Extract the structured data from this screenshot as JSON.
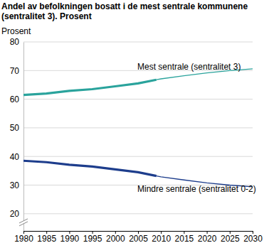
{
  "chart_data": {
    "type": "line",
    "title": "Andel av befolkningen bosatt i de mest sentrale kommunene (sentralitet 3). Prosent",
    "y_label": "Prosent",
    "x": [
      1980,
      1985,
      1990,
      1995,
      2000,
      2005,
      2009,
      2010,
      2015,
      2020,
      2025,
      2030
    ],
    "series": [
      {
        "name": "Mest sentrale (sentralitet 3)",
        "color": "#2aa39c",
        "line_style": "thick",
        "values": [
          61.5,
          62.0,
          62.9,
          63.5,
          64.5,
          65.5,
          66.8,
          null,
          null,
          null,
          null,
          null
        ]
      },
      {
        "color": "#2aa39c",
        "line_style": "thin",
        "values": [
          null,
          null,
          null,
          null,
          null,
          null,
          66.8,
          67.1,
          68.2,
          69.2,
          70.0,
          70.6
        ]
      },
      {
        "name": "Mindre sentrale (sentralitet 0-2)",
        "color": "#1d3d8c",
        "line_style": "thick",
        "values": [
          38.5,
          38.0,
          37.1,
          36.5,
          35.5,
          34.5,
          33.2,
          null,
          null,
          null,
          null,
          null
        ]
      },
      {
        "color": "#1d3d8c",
        "line_style": "thin",
        "values": [
          null,
          null,
          null,
          null,
          null,
          null,
          33.2,
          32.9,
          31.8,
          30.8,
          30.0,
          29.4
        ]
      }
    ],
    "xlim": [
      1980,
      2030
    ],
    "xticks": [
      1980,
      1985,
      1990,
      1995,
      2000,
      2005,
      2010,
      2015,
      2020,
      2025,
      2030
    ],
    "ylim": [
      14,
      80
    ],
    "yticks": [
      20,
      30,
      40,
      50,
      60,
      70,
      80
    ],
    "grid": true
  }
}
